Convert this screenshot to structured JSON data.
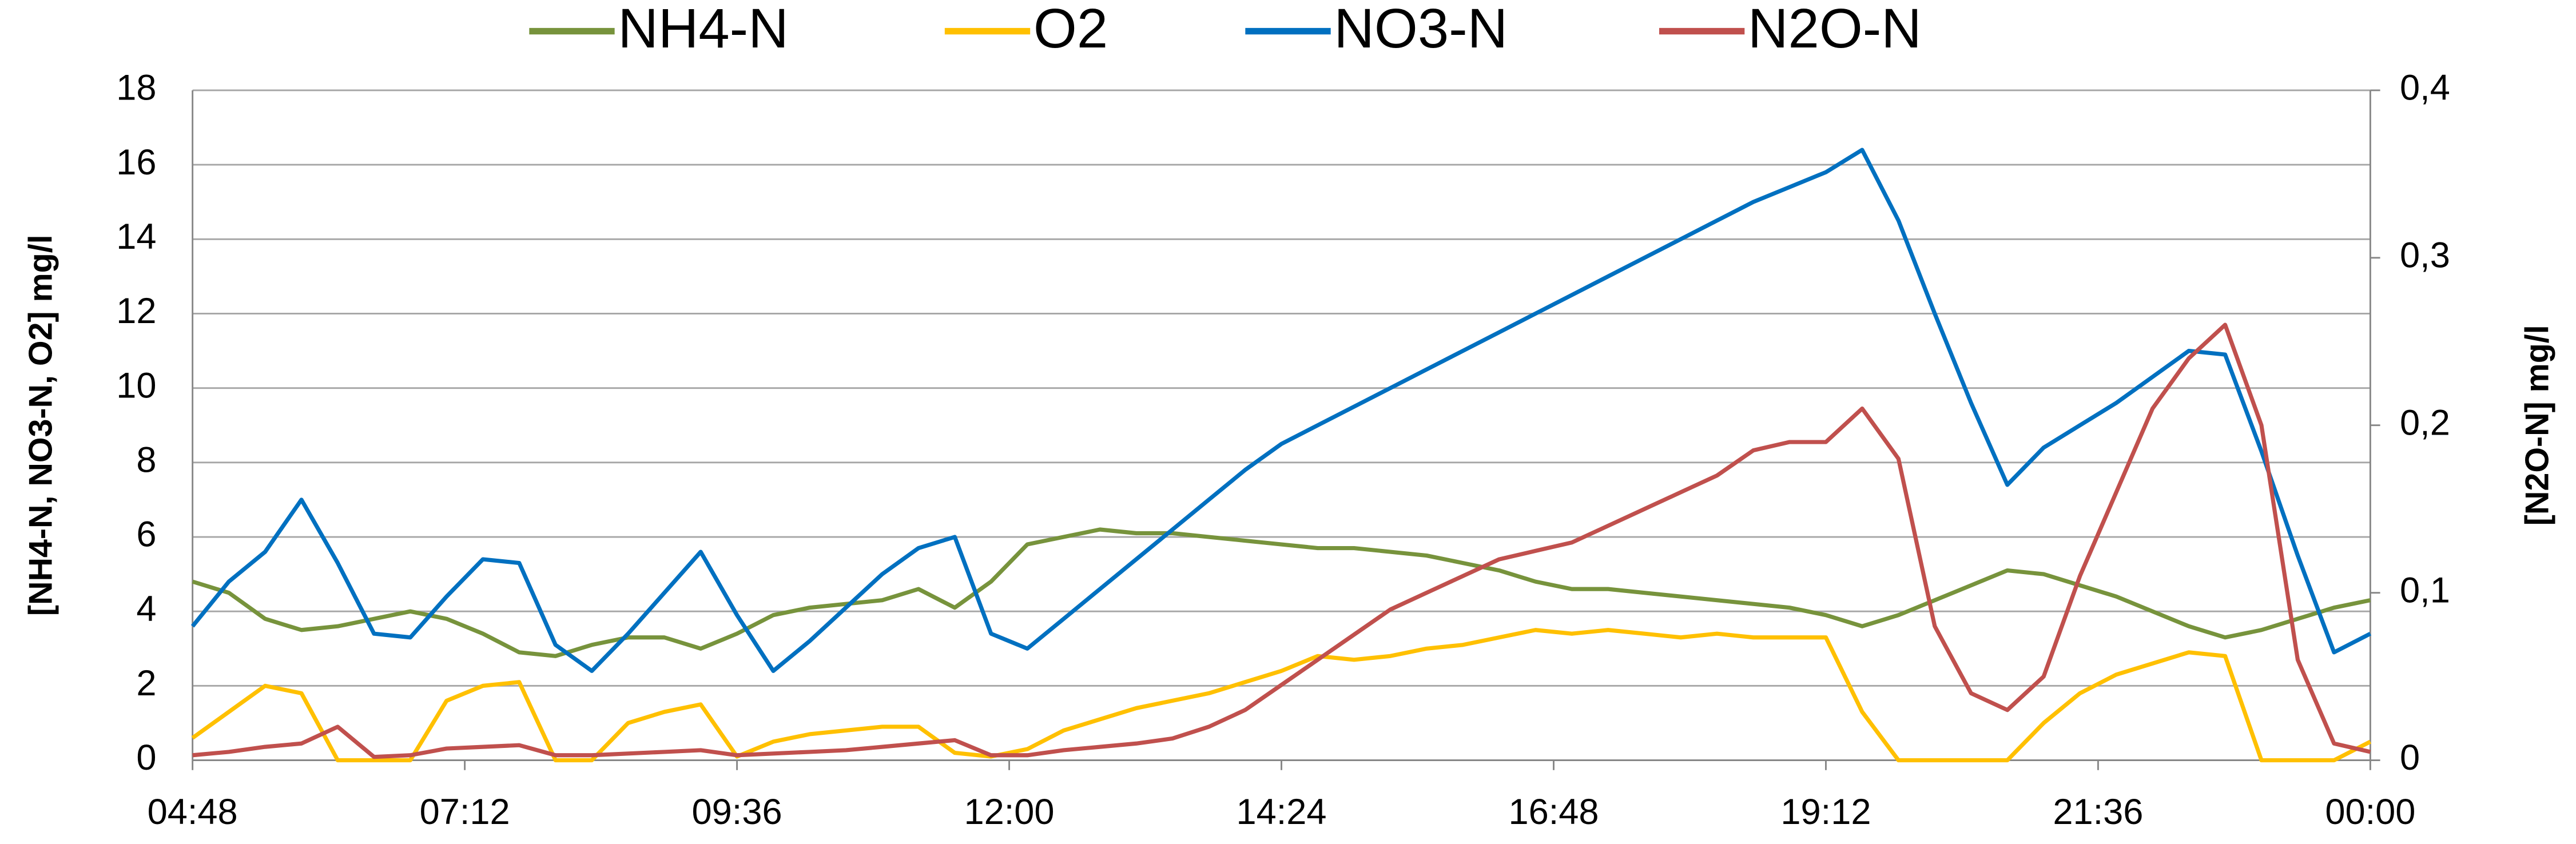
{
  "chart_data": {
    "type": "line",
    "x": [
      4.8,
      5.12,
      5.44,
      5.76,
      6.08,
      6.4,
      6.72,
      7.04,
      7.36,
      7.68,
      8,
      8.32,
      8.64,
      8.96,
      9.28,
      9.6,
      9.92,
      10.24,
      10.56,
      10.88,
      11.2,
      11.52,
      11.84,
      12.16,
      12.48,
      12.8,
      13.12,
      13.44,
      13.76,
      14.08,
      14.4,
      14.72,
      15.04,
      15.36,
      15.68,
      16,
      16.32,
      16.64,
      16.96,
      17.28,
      17.6,
      17.92,
      18.24,
      18.56,
      18.88,
      19.2,
      19.52,
      19.84,
      20.16,
      20.48,
      20.8,
      21.12,
      21.44,
      21.76,
      22.08,
      22.4,
      22.72,
      23.04,
      23.36,
      23.68,
      24
    ],
    "series": [
      {
        "name": "NH4-N",
        "color": "#77933c",
        "values": [
          4.8,
          4.5,
          3.8,
          3.5,
          3.6,
          3.8,
          4.0,
          3.8,
          3.4,
          2.9,
          2.8,
          3.1,
          3.3,
          3.3,
          3.0,
          3.4,
          3.9,
          4.1,
          4.2,
          4.3,
          4.6,
          4.1,
          4.8,
          5.8,
          6.0,
          6.2,
          6.1,
          6.1,
          6.0,
          5.9,
          5.8,
          5.7,
          5.7,
          5.6,
          5.5,
          5.3,
          5.1,
          4.8,
          4.6,
          4.6,
          4.5,
          4.4,
          4.3,
          4.2,
          4.1,
          3.9,
          3.6,
          3.9,
          4.3,
          4.7,
          5.1,
          5.0,
          4.7,
          4.4,
          4.0,
          3.6,
          3.3,
          3.5,
          3.8,
          4.1,
          4.3
        ]
      },
      {
        "name": "O2",
        "color": "#ffc000",
        "values": [
          0.6,
          1.3,
          2.0,
          1.8,
          0,
          0,
          0,
          1.6,
          2.0,
          2.1,
          0,
          0,
          1.0,
          1.3,
          1.5,
          0.1,
          0.5,
          0.7,
          0.8,
          0.9,
          0.9,
          0.2,
          0.1,
          0.3,
          0.8,
          1.1,
          1.4,
          1.6,
          1.8,
          2.1,
          2.4,
          2.8,
          2.7,
          2.8,
          3.0,
          3.1,
          3.3,
          3.5,
          3.4,
          3.5,
          3.4,
          3.3,
          3.4,
          3.3,
          3.3,
          3.3,
          1.3,
          0,
          0,
          0,
          0,
          1.0,
          1.8,
          2.3,
          2.6,
          2.9,
          2.8,
          0,
          0,
          0,
          0.5
        ]
      },
      {
        "name": "NO3-N",
        "color": "#0070c0",
        "values": [
          3.6,
          4.8,
          5.6,
          7.0,
          5.3,
          3.4,
          3.3,
          4.4,
          5.4,
          5.3,
          3.1,
          2.4,
          3.4,
          4.5,
          5.6,
          3.9,
          2.4,
          3.2,
          4.1,
          5.0,
          5.7,
          6.0,
          3.4,
          3.0,
          3.8,
          4.6,
          5.4,
          6.2,
          7.0,
          7.8,
          8.5,
          9.0,
          9.5,
          10.0,
          10.5,
          11.0,
          11.5,
          12.0,
          12.5,
          13.0,
          13.5,
          14.0,
          14.5,
          15.0,
          15.4,
          15.8,
          16.4,
          14.5,
          12.0,
          9.6,
          7.4,
          8.4,
          9.0,
          9.6,
          10.3,
          11.0,
          10.9,
          8.3,
          5.5,
          2.9,
          3.4
        ]
      },
      {
        "name": "N2O-N",
        "color": "#c0504d",
        "axis": "y2",
        "values": [
          0.003,
          0.005,
          0.008,
          0.01,
          0.02,
          0.002,
          0.003,
          0.007,
          0.008,
          0.009,
          0.003,
          0.003,
          0.004,
          0.005,
          0.006,
          0.003,
          0.004,
          0.005,
          0.006,
          0.008,
          0.01,
          0.012,
          0.003,
          0.003,
          0.006,
          0.008,
          0.01,
          0.013,
          0.02,
          0.03,
          0.045,
          0.06,
          0.075,
          0.09,
          0.1,
          0.11,
          0.12,
          0.125,
          0.13,
          0.14,
          0.15,
          0.16,
          0.17,
          0.185,
          0.19,
          0.19,
          0.21,
          0.18,
          0.08,
          0.04,
          0.03,
          0.05,
          0.11,
          0.16,
          0.21,
          0.24,
          0.26,
          0.2,
          0.06,
          0.01,
          0.005
        ]
      }
    ],
    "ylabel": "[NH4-N, NO3-N, O2] mg/l",
    "y2label": "[N2O-N] mg/l",
    "xlim": [
      4.8,
      24
    ],
    "xticks": [
      {
        "value": 4.8,
        "label": "04:48"
      },
      {
        "value": 7.2,
        "label": "07:12"
      },
      {
        "value": 9.6,
        "label": "09:36"
      },
      {
        "value": 12,
        "label": "12:00"
      },
      {
        "value": 14.4,
        "label": "14:24"
      },
      {
        "value": 16.8,
        "label": "16:48"
      },
      {
        "value": 19.2,
        "label": "19:12"
      },
      {
        "value": 21.6,
        "label": "21:36"
      },
      {
        "value": 24,
        "label": "00:00"
      }
    ],
    "ylim": [
      0,
      18
    ],
    "yticks": [
      0,
      2,
      4,
      6,
      8,
      10,
      12,
      14,
      16,
      18
    ],
    "y2lim": [
      0,
      0.4
    ],
    "y2ticks": [
      0,
      {
        "value": 0.1,
        "label": "0,1"
      },
      {
        "value": 0.2,
        "label": "0,2"
      },
      {
        "value": 0.3,
        "label": "0,3"
      },
      {
        "value": 0.4,
        "label": "0,4"
      }
    ],
    "grid": true,
    "legend": "top"
  }
}
